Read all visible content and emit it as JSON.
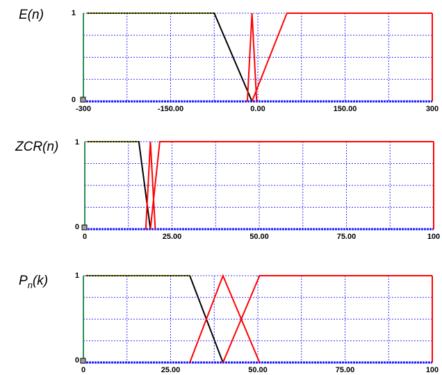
{
  "chart_data": [
    {
      "type": "line",
      "ylabel": "E(n)",
      "xlim": [
        -300,
        300
      ],
      "ylim": [
        0,
        1
      ],
      "x_tick_labels": [
        "-300",
        "-150.00",
        "0.00",
        "150.00",
        "300"
      ],
      "x_tick_values": [
        -300,
        -150,
        0,
        150,
        300
      ],
      "y_tick_labels": [
        "0",
        "1"
      ],
      "grid": true,
      "series": [
        {
          "color": "#000000",
          "x": [
            -295,
            -75,
            -10
          ],
          "y": [
            1,
            1,
            0
          ]
        },
        {
          "color": "#ff0000",
          "x": [
            -18,
            -10,
            -2
          ],
          "y": [
            0,
            1,
            0
          ]
        },
        {
          "color": "#ff0000",
          "x": [
            -10,
            50,
            300
          ],
          "y": [
            0,
            1,
            1
          ]
        }
      ]
    },
    {
      "type": "line",
      "ylabel": "ZCR(n)",
      "xlim": [
        0,
        100
      ],
      "ylim": [
        0,
        1
      ],
      "x_tick_labels": [
        "0",
        "25.00",
        "50.00",
        "75.00",
        "100"
      ],
      "x_tick_values": [
        0,
        25,
        50,
        75,
        100
      ],
      "y_tick_labels": [
        "0",
        "1"
      ],
      "grid": true,
      "series": [
        {
          "color": "#000000",
          "x": [
            0.5,
            15.5,
            18.8
          ],
          "y": [
            1,
            1,
            0
          ]
        },
        {
          "color": "#ff0000",
          "x": [
            17.5,
            18.8,
            20.2
          ],
          "y": [
            0,
            1,
            0
          ]
        },
        {
          "color": "#ff0000",
          "x": [
            18.8,
            21.5,
            100
          ],
          "y": [
            0,
            1,
            1
          ]
        }
      ]
    },
    {
      "type": "line",
      "ylabel": "P",
      "ylabel_sub": "n",
      "ylabel_suffix": "(k)",
      "xlim": [
        0,
        100
      ],
      "ylim": [
        0,
        1
      ],
      "x_tick_labels": [
        "0",
        "25.00",
        "50.00",
        "75.00",
        "100"
      ],
      "x_tick_values": [
        0,
        25,
        50,
        75,
        100
      ],
      "y_tick_labels": [
        "0",
        "1"
      ],
      "grid": true,
      "series": [
        {
          "color": "#000000",
          "x": [
            0.5,
            30.5,
            40
          ],
          "y": [
            1,
            1,
            0
          ]
        },
        {
          "color": "#ff0000",
          "x": [
            30.5,
            40,
            50.5
          ],
          "y": [
            0,
            1,
            0
          ]
        },
        {
          "color": "#ff0000",
          "x": [
            40,
            50.5,
            100
          ],
          "y": [
            0,
            1,
            1
          ]
        }
      ]
    }
  ]
}
